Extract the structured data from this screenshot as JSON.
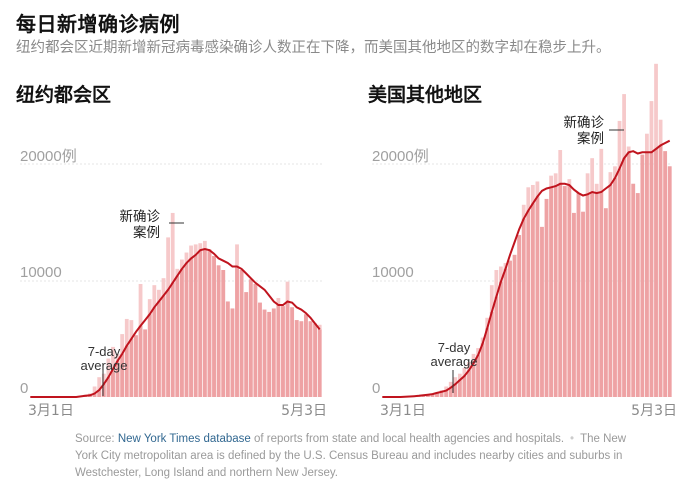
{
  "header": {
    "title": "每日新增确诊病例",
    "subtitle": "纽约都会区近期新增新冠病毒感染确诊人数正在下降，而美国其他地区的数字却在稳步上升。"
  },
  "footer": {
    "source_prefix": "Source: ",
    "source_link": "New York Times database",
    "source_rest": " of reports from state and local health agencies and hospitals.",
    "separator": "•",
    "note": "The New York City metropolitan area is defined by the U.S. Census Bureau and includes nearby cities and suburbs in Westchester, Long Island and northern New Jersey."
  },
  "colors": {
    "bar_current": "#eea2a4",
    "bar_daily": "#f6c9ca",
    "average_line": "#c0141e",
    "gridline": "#e4e4e4",
    "tick_text": "#a0a0a0"
  },
  "chart_data": [
    {
      "type": "bar",
      "title": "纽约都会区",
      "xlabel": "",
      "ylabel": "",
      "x_tick_labels": [
        "3月1日",
        "5月3日"
      ],
      "y_tick_labels": [
        "0",
        "10000",
        "20000例"
      ],
      "ylim": [
        0,
        20000
      ],
      "grid": true,
      "annotations": [
        "新确诊案例",
        "7-day average"
      ],
      "x_range": [
        "3月1日",
        "5月3日"
      ],
      "series": [
        {
          "name": "新确诊案例",
          "values": [
            0,
            0,
            0,
            0,
            0,
            0,
            0,
            0,
            0,
            0,
            50,
            100,
            200,
            300,
            900,
            1700,
            2000,
            3300,
            4300,
            3700,
            5400,
            6700,
            6600,
            5300,
            9700,
            5800,
            8400,
            9600,
            9200,
            10200,
            13700,
            15800,
            11000,
            11800,
            12400,
            13000,
            13100,
            13200,
            13400,
            12700,
            12100,
            11300,
            10900,
            8200,
            7600,
            13100,
            10900,
            9000,
            10100,
            9700,
            8100,
            7500,
            7300,
            7600,
            8500,
            7800,
            9900,
            7700,
            6600,
            6500,
            7100,
            6500,
            6300,
            6200
          ]
        },
        {
          "name": "7-day average",
          "values": [
            0,
            0,
            0,
            0,
            0,
            0,
            0,
            0,
            0,
            0,
            0,
            50,
            100,
            150,
            300,
            600,
            1100,
            1700,
            2400,
            3100,
            3700,
            4400,
            5000,
            5600,
            6100,
            6600,
            7100,
            7700,
            8200,
            8700,
            9200,
            9800,
            10400,
            11000,
            11500,
            11900,
            12200,
            12600,
            12700,
            12600,
            12300,
            11900,
            11700,
            11500,
            11200,
            11200,
            11000,
            10600,
            10200,
            9800,
            9500,
            9200,
            8700,
            8200,
            7900,
            7900,
            8200,
            8100,
            7700,
            7500,
            7200,
            6800,
            6300,
            5800
          ]
        }
      ]
    },
    {
      "type": "bar",
      "title": "美国其他地区",
      "xlabel": "",
      "ylabel": "",
      "x_tick_labels": [
        "3月1日",
        "5月3日"
      ],
      "y_tick_labels": [
        "0",
        "10000",
        "20000例"
      ],
      "ylim": [
        0,
        20000
      ],
      "grid": true,
      "annotations": [
        "新确诊案例",
        "7-day average"
      ],
      "x_range": [
        "3月1日",
        "5月3日"
      ],
      "series": [
        {
          "name": "新确诊案例",
          "values": [
            0,
            0,
            0,
            0,
            0,
            10,
            30,
            50,
            100,
            150,
            200,
            300,
            400,
            600,
            900,
            1300,
            1700,
            2000,
            2500,
            3000,
            3700,
            4200,
            5100,
            6800,
            9600,
            10900,
            11200,
            11500,
            11700,
            12200,
            13900,
            16500,
            18000,
            18200,
            18500,
            14600,
            17000,
            19000,
            19200,
            21200,
            18100,
            18700,
            15800,
            17500,
            15900,
            19200,
            20500,
            18300,
            21300,
            16200,
            19300,
            19800,
            23700,
            26000,
            21500,
            18300,
            17500,
            20800,
            22600,
            25400,
            28600,
            23800,
            21100,
            19800
          ]
        },
        {
          "name": "7-day average",
          "values": [
            0,
            0,
            0,
            0,
            0,
            20,
            40,
            70,
            100,
            150,
            200,
            250,
            350,
            450,
            550,
            800,
            1100,
            1450,
            1800,
            2300,
            2900,
            3600,
            4600,
            5900,
            7300,
            8600,
            9900,
            11000,
            12200,
            13300,
            14400,
            15300,
            16000,
            16600,
            17200,
            17700,
            17900,
            18000,
            18100,
            18300,
            18300,
            18200,
            17800,
            17500,
            17300,
            17400,
            17600,
            17500,
            17600,
            17900,
            18200,
            18800,
            19600,
            20500,
            21000,
            21100,
            20900,
            21000,
            21000,
            21000,
            21300,
            21600,
            21800,
            22000
          ]
        }
      ]
    }
  ],
  "panels": [
    {
      "title": "纽约都会区",
      "y_ticks": [
        {
          "label": "20000例",
          "value": 20000
        },
        {
          "label": "10000",
          "value": 10000
        },
        {
          "label": "0",
          "value": 0
        }
      ],
      "x_ticks": [
        {
          "label": "3月1日"
        },
        {
          "label": "5月3日"
        }
      ],
      "label_cases_line1": "新确诊",
      "label_cases_line2": "案例",
      "label_avg_line1": "7-day",
      "label_avg_line2": "average"
    },
    {
      "title": "美国其他地区",
      "y_ticks": [
        {
          "label": "20000例",
          "value": 20000
        },
        {
          "label": "10000",
          "value": 10000
        },
        {
          "label": "0",
          "value": 0
        }
      ],
      "x_ticks": [
        {
          "label": "3月1日"
        },
        {
          "label": "5月3日"
        }
      ],
      "label_cases_line1": "新确诊",
      "label_cases_line2": "案例",
      "label_avg_line1": "7-day",
      "label_avg_line2": "average"
    }
  ]
}
